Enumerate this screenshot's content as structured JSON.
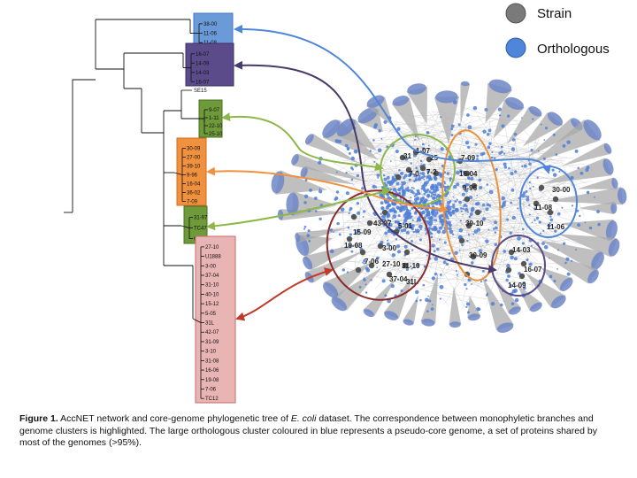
{
  "legend": {
    "items": [
      {
        "label": "Strain",
        "color": "#7a7a7a"
      },
      {
        "label": "Orthologous",
        "color": "#4f86d9"
      }
    ]
  },
  "colors": {
    "clade_blue": "#4f86d9",
    "clade_purple": "#5b4b8a",
    "clade_green": "#6e9a3a",
    "clade_orange": "#f0913f",
    "clade_pink": "#e8b4b4",
    "arrow_blue": "#4f86d9",
    "arrow_purple": "#4a3a6a",
    "arrow_green": "#8cb84a",
    "arrow_orange": "#f0913f",
    "arrow_red": "#c0392b",
    "network_gray": "#9a9a9a",
    "ortholog_blue": "#4f7fd8"
  },
  "tree": {
    "clades": [
      {
        "name": "blue",
        "leaves": [
          "38-00",
          "11-06",
          "11-08"
        ]
      },
      {
        "name": "purple",
        "leaves": [
          "16-07",
          "14-09",
          "14-03",
          "16-07"
        ]
      },
      {
        "name": "green-top",
        "leaves": [
          "9-07",
          "1-11",
          "22-10",
          "25-10"
        ]
      },
      {
        "name": "orange",
        "leaves": [
          "30-09",
          "27-00",
          "39-10",
          "9-96",
          "16-04",
          "36-02",
          "7-09"
        ]
      },
      {
        "name": "green-bottom",
        "leaves": [
          "31-97",
          "TC47",
          "6-12"
        ]
      },
      {
        "name": "pink",
        "leaves": [
          "27-10",
          "U1888",
          "3-00",
          "37-04",
          "31-10",
          "40-10",
          "15-12",
          "5-05",
          "31L",
          "42-07",
          "31-09",
          "3-10",
          "31-08",
          "16-06",
          "19-08",
          "7-06",
          "TC12"
        ]
      }
    ],
    "outgroup_label": "SE15"
  },
  "network": {
    "green_cluster_nodes": [
      "31",
      "1-07",
      "25",
      "7-0",
      "7-2"
    ],
    "orange_cluster_nodes": [
      "7-09",
      "16-04",
      "9-96",
      "39-10",
      "30-09"
    ],
    "blue_cluster_nodes": [
      "30-00",
      "11-08",
      "11-06"
    ],
    "purple_cluster_nodes": [
      "14-03",
      "16-07",
      "14-09"
    ],
    "red_cluster_nodes": [
      "43-07",
      "3-00",
      "19-08",
      "7-06",
      "27-10",
      "31-10",
      "37-04",
      "31L",
      "15-09",
      "5-01"
    ]
  },
  "caption": {
    "label": "Figure 1.",
    "text_before_italic": "AccNET network and core-genome phylogenetic tree of",
    "italic": "E. coli",
    "text_after_italic": "dataset. The correspondence between monophyletic branches and genome clusters is highlighted. The large orthologous cluster coloured in blue represents a pseudo-core genome, a set of proteins shared by most of the genomes (>95%)."
  }
}
